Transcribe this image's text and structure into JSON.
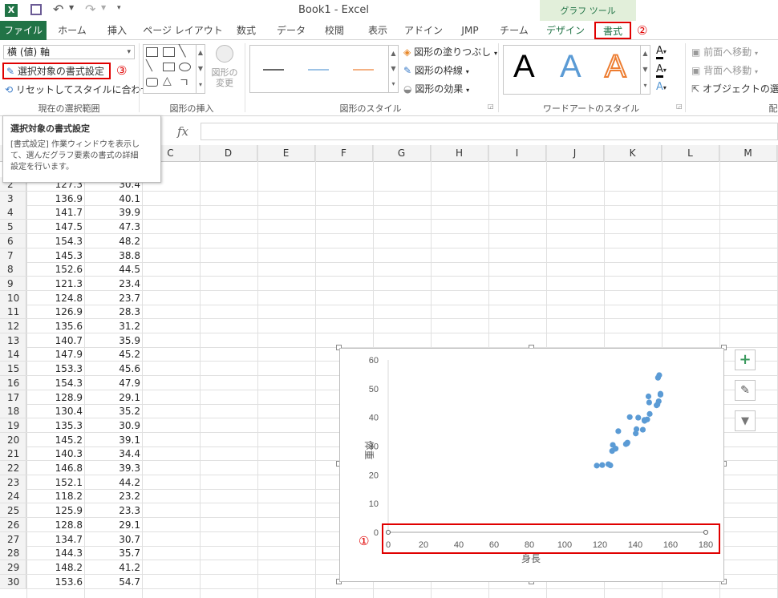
{
  "app": {
    "title": "Book1 - Excel"
  },
  "tabs": [
    "ファイル",
    "ホーム",
    "挿入",
    "ページ レイアウト",
    "数式",
    "データ",
    "校閲",
    "表示",
    "アドイン",
    "JMP",
    "チーム",
    "デザイン",
    "書式"
  ],
  "context_group": "グラフ ツール",
  "ribbon": {
    "selection_dropdown": "横 (値) 軸",
    "format_selection": "選択対象の書式設定",
    "reset_style": "リセットしてスタイルに合わせる",
    "group_current_selection": "現在の選択範囲",
    "group_insert_shapes": "図形の挿入",
    "change_shape": "図形の変更",
    "group_shape_styles": "図形のスタイル",
    "shape_fill": "図形の塗りつぶし",
    "shape_outline": "図形の枠線",
    "shape_effects": "図形の効果",
    "group_wordart": "ワードアートのスタイル",
    "wordart_letter": "A",
    "bring_forward": "前面へ移動",
    "send_backward": "背面へ移動",
    "selection_pane": "オブジェクトの選択と",
    "arrange_cut": "配"
  },
  "markers": {
    "one": "①",
    "two": "②",
    "three": "③"
  },
  "tooltip": {
    "title": "選択対象の書式設定",
    "line1": "[書式設定] 作業ウィンドウを表示し",
    "line2": "て、選んだグラフ要素の書式の詳細",
    "line3": "設定を行います。"
  },
  "formula_bar": {
    "fx": "fx"
  },
  "columns": [
    "C",
    "D",
    "E",
    "F",
    "G",
    "H",
    "I",
    "J",
    "K",
    "L",
    "M"
  ],
  "rows": [
    {
      "n": "2",
      "a": "127.3",
      "b": "30.4"
    },
    {
      "n": "3",
      "a": "136.9",
      "b": "40.1"
    },
    {
      "n": "4",
      "a": "141.7",
      "b": "39.9"
    },
    {
      "n": "5",
      "a": "147.5",
      "b": "47.3"
    },
    {
      "n": "6",
      "a": "154.3",
      "b": "48.2"
    },
    {
      "n": "7",
      "a": "145.3",
      "b": "38.8"
    },
    {
      "n": "8",
      "a": "152.6",
      "b": "44.5"
    },
    {
      "n": "9",
      "a": "121.3",
      "b": "23.4"
    },
    {
      "n": "10",
      "a": "124.8",
      "b": "23.7"
    },
    {
      "n": "11",
      "a": "126.9",
      "b": "28.3"
    },
    {
      "n": "12",
      "a": "135.6",
      "b": "31.2"
    },
    {
      "n": "13",
      "a": "140.7",
      "b": "35.9"
    },
    {
      "n": "14",
      "a": "147.9",
      "b": "45.2"
    },
    {
      "n": "15",
      "a": "153.3",
      "b": "45.6"
    },
    {
      "n": "16",
      "a": "154.3",
      "b": "47.9"
    },
    {
      "n": "17",
      "a": "128.9",
      "b": "29.1"
    },
    {
      "n": "18",
      "a": "130.4",
      "b": "35.2"
    },
    {
      "n": "19",
      "a": "135.3",
      "b": "30.9"
    },
    {
      "n": "20",
      "a": "145.2",
      "b": "39.1"
    },
    {
      "n": "21",
      "a": "140.3",
      "b": "34.4"
    },
    {
      "n": "22",
      "a": "146.8",
      "b": "39.3"
    },
    {
      "n": "23",
      "a": "152.1",
      "b": "44.2"
    },
    {
      "n": "24",
      "a": "118.2",
      "b": "23.2"
    },
    {
      "n": "25",
      "a": "125.9",
      "b": "23.3"
    },
    {
      "n": "26",
      "a": "128.8",
      "b": "29.1"
    },
    {
      "n": "27",
      "a": "134.7",
      "b": "30.7"
    },
    {
      "n": "28",
      "a": "144.3",
      "b": "35.7"
    },
    {
      "n": "29",
      "a": "148.2",
      "b": "41.2"
    },
    {
      "n": "30",
      "a": "153.6",
      "b": "54.7"
    }
  ],
  "chart_data": {
    "type": "scatter",
    "xlabel": "身長",
    "ylabel": "体重",
    "xlim": [
      0,
      180
    ],
    "ylim": [
      0,
      60
    ],
    "xticks": [
      "0",
      "20",
      "40",
      "60",
      "80",
      "100",
      "120",
      "140",
      "160",
      "180"
    ],
    "yticks": [
      "0",
      "10",
      "20",
      "30",
      "40",
      "50",
      "60"
    ],
    "color": "#5b9bd5",
    "points": [
      [
        127.3,
        30.4
      ],
      [
        136.9,
        40.1
      ],
      [
        141.7,
        39.9
      ],
      [
        147.5,
        47.3
      ],
      [
        154.3,
        48.2
      ],
      [
        145.3,
        38.8
      ],
      [
        152.6,
        44.5
      ],
      [
        121.3,
        23.4
      ],
      [
        124.8,
        23.7
      ],
      [
        126.9,
        28.3
      ],
      [
        135.6,
        31.2
      ],
      [
        140.7,
        35.9
      ],
      [
        147.9,
        45.2
      ],
      [
        153.3,
        45.6
      ],
      [
        154.3,
        47.9
      ],
      [
        128.9,
        29.1
      ],
      [
        130.4,
        35.2
      ],
      [
        135.3,
        30.9
      ],
      [
        145.2,
        39.1
      ],
      [
        140.3,
        34.4
      ],
      [
        146.8,
        39.3
      ],
      [
        152.1,
        44.2
      ],
      [
        118.2,
        23.2
      ],
      [
        125.9,
        23.3
      ],
      [
        128.8,
        29.1
      ],
      [
        134.7,
        30.7
      ],
      [
        144.3,
        35.7
      ],
      [
        148.2,
        41.2
      ],
      [
        153.6,
        54.7
      ],
      [
        152.9,
        53.8
      ]
    ]
  },
  "colors": {
    "excel_green": "#217346",
    "highlight_red": "#e00000",
    "series_blue": "#5b9bd5"
  }
}
